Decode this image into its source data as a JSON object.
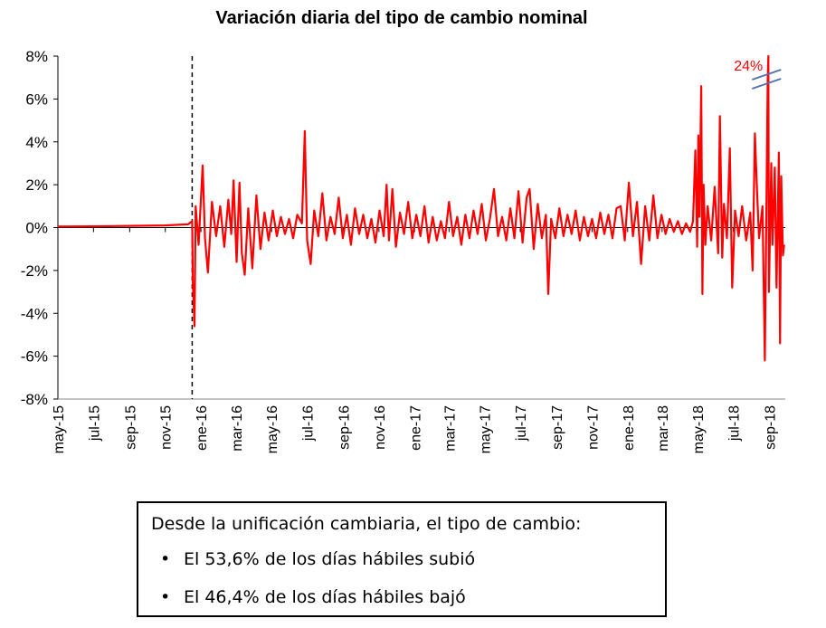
{
  "chart_data": {
    "type": "line",
    "title": "Variación diaria del tipo de cambio nominal",
    "xlabel": "",
    "ylabel": "",
    "ylim": [
      -8,
      8
    ],
    "yticks": [
      "8%",
      "6%",
      "4%",
      "2%",
      "0%",
      "-2%",
      "-4%",
      "-6%",
      "-8%"
    ],
    "xticks": [
      "may-15",
      "jul-15",
      "sep-15",
      "nov-15",
      "ene-16",
      "mar-16",
      "may-16",
      "jul-16",
      "sep-16",
      "nov-16",
      "ene-17",
      "mar-17",
      "may-17",
      "jul-17",
      "sep-17",
      "nov-17",
      "ene-18",
      "mar-18",
      "may-18",
      "jul-18",
      "sep-18"
    ],
    "grid": false,
    "legend": "none",
    "line_color": "#ff0000",
    "event_marker": {
      "date": "2015-12-17",
      "style": "dashed"
    },
    "break_annotation": {
      "label": "24%",
      "date": "2018-08-30",
      "value": 24
    },
    "series": [
      {
        "values": [
          {
            "x": "2015-05-01",
            "y": 0.05
          },
          {
            "x": "2015-07-01",
            "y": 0.06
          },
          {
            "x": "2015-09-01",
            "y": 0.08
          },
          {
            "x": "2015-11-01",
            "y": 0.1
          },
          {
            "x": "2015-12-10",
            "y": 0.15
          },
          {
            "x": "2015-12-17",
            "y": 0.3
          },
          {
            "x": "2015-12-18",
            "y": -2.5
          },
          {
            "x": "2015-12-21",
            "y": -4.6
          },
          {
            "x": "2015-12-23",
            "y": 1.0
          },
          {
            "x": "2015-12-28",
            "y": -0.8
          },
          {
            "x": "2016-01-04",
            "y": 2.9
          },
          {
            "x": "2016-01-08",
            "y": -0.5
          },
          {
            "x": "2016-01-13",
            "y": -2.1
          },
          {
            "x": "2016-01-20",
            "y": 1.2
          },
          {
            "x": "2016-01-27",
            "y": -0.4
          },
          {
            "x": "2016-02-03",
            "y": 1.0
          },
          {
            "x": "2016-02-10",
            "y": -0.9
          },
          {
            "x": "2016-02-17",
            "y": 1.3
          },
          {
            "x": "2016-02-22",
            "y": -0.3
          },
          {
            "x": "2016-02-26",
            "y": 2.2
          },
          {
            "x": "2016-03-02",
            "y": -1.6
          },
          {
            "x": "2016-03-07",
            "y": 2.1
          },
          {
            "x": "2016-03-11",
            "y": -1.2
          },
          {
            "x": "2016-03-16",
            "y": -2.2
          },
          {
            "x": "2016-03-22",
            "y": 0.9
          },
          {
            "x": "2016-03-29",
            "y": -1.9
          },
          {
            "x": "2016-04-05",
            "y": 1.5
          },
          {
            "x": "2016-04-12",
            "y": -1.0
          },
          {
            "x": "2016-04-19",
            "y": 0.7
          },
          {
            "x": "2016-04-26",
            "y": -0.6
          },
          {
            "x": "2016-05-03",
            "y": 0.8
          },
          {
            "x": "2016-05-10",
            "y": -0.4
          },
          {
            "x": "2016-05-17",
            "y": 0.5
          },
          {
            "x": "2016-05-24",
            "y": -0.3
          },
          {
            "x": "2016-05-31",
            "y": 0.4
          },
          {
            "x": "2016-06-07",
            "y": -0.5
          },
          {
            "x": "2016-06-14",
            "y": 0.6
          },
          {
            "x": "2016-06-22",
            "y": 0.2
          },
          {
            "x": "2016-06-27",
            "y": 4.5
          },
          {
            "x": "2016-07-01",
            "y": -0.6
          },
          {
            "x": "2016-07-07",
            "y": -1.7
          },
          {
            "x": "2016-07-13",
            "y": 0.8
          },
          {
            "x": "2016-07-20",
            "y": -0.4
          },
          {
            "x": "2016-07-27",
            "y": 1.6
          },
          {
            "x": "2016-08-03",
            "y": -0.6
          },
          {
            "x": "2016-08-10",
            "y": 0.5
          },
          {
            "x": "2016-08-17",
            "y": -0.3
          },
          {
            "x": "2016-08-24",
            "y": 1.4
          },
          {
            "x": "2016-08-31",
            "y": -0.5
          },
          {
            "x": "2016-09-07",
            "y": 0.6
          },
          {
            "x": "2016-09-14",
            "y": -0.8
          },
          {
            "x": "2016-09-21",
            "y": 0.9
          },
          {
            "x": "2016-09-28",
            "y": -0.3
          },
          {
            "x": "2016-10-05",
            "y": 0.6
          },
          {
            "x": "2016-10-12",
            "y": -0.5
          },
          {
            "x": "2016-10-19",
            "y": 0.4
          },
          {
            "x": "2016-10-26",
            "y": -0.7
          },
          {
            "x": "2016-11-02",
            "y": 0.8
          },
          {
            "x": "2016-11-09",
            "y": -0.4
          },
          {
            "x": "2016-11-14",
            "y": 2.0
          },
          {
            "x": "2016-11-18",
            "y": -0.6
          },
          {
            "x": "2016-11-24",
            "y": 1.8
          },
          {
            "x": "2016-11-30",
            "y": -0.9
          },
          {
            "x": "2016-12-07",
            "y": 0.7
          },
          {
            "x": "2016-12-14",
            "y": -0.3
          },
          {
            "x": "2016-12-21",
            "y": 1.2
          },
          {
            "x": "2016-12-28",
            "y": -0.5
          },
          {
            "x": "2017-01-04",
            "y": 0.6
          },
          {
            "x": "2017-01-11",
            "y": -0.4
          },
          {
            "x": "2017-01-18",
            "y": 1.0
          },
          {
            "x": "2017-01-25",
            "y": -0.7
          },
          {
            "x": "2017-02-01",
            "y": 0.5
          },
          {
            "x": "2017-02-08",
            "y": -0.6
          },
          {
            "x": "2017-02-15",
            "y": 0.3
          },
          {
            "x": "2017-02-22",
            "y": -0.5
          },
          {
            "x": "2017-03-01",
            "y": 1.2
          },
          {
            "x": "2017-03-08",
            "y": -0.4
          },
          {
            "x": "2017-03-15",
            "y": 0.5
          },
          {
            "x": "2017-03-22",
            "y": -0.8
          },
          {
            "x": "2017-03-29",
            "y": 0.6
          },
          {
            "x": "2017-04-05",
            "y": -0.5
          },
          {
            "x": "2017-04-12",
            "y": 0.8
          },
          {
            "x": "2017-04-19",
            "y": -0.3
          },
          {
            "x": "2017-04-26",
            "y": 1.1
          },
          {
            "x": "2017-05-03",
            "y": -0.6
          },
          {
            "x": "2017-05-10",
            "y": 0.4
          },
          {
            "x": "2017-05-17",
            "y": 1.8
          },
          {
            "x": "2017-05-24",
            "y": -0.4
          },
          {
            "x": "2017-05-31",
            "y": 0.5
          },
          {
            "x": "2017-06-07",
            "y": -0.6
          },
          {
            "x": "2017-06-14",
            "y": 0.9
          },
          {
            "x": "2017-06-21",
            "y": -0.5
          },
          {
            "x": "2017-06-28",
            "y": 1.7
          },
          {
            "x": "2017-07-05",
            "y": -0.7
          },
          {
            "x": "2017-07-12",
            "y": 1.4
          },
          {
            "x": "2017-07-17",
            "y": 1.8
          },
          {
            "x": "2017-07-24",
            "y": -1.0
          },
          {
            "x": "2017-07-31",
            "y": 1.1
          },
          {
            "x": "2017-08-07",
            "y": -0.5
          },
          {
            "x": "2017-08-14",
            "y": 0.6
          },
          {
            "x": "2017-08-18",
            "y": -3.1
          },
          {
            "x": "2017-08-23",
            "y": 0.4
          },
          {
            "x": "2017-08-30",
            "y": -0.5
          },
          {
            "x": "2017-09-06",
            "y": 0.9
          },
          {
            "x": "2017-09-13",
            "y": -0.4
          },
          {
            "x": "2017-09-20",
            "y": 0.6
          },
          {
            "x": "2017-09-27",
            "y": -0.3
          },
          {
            "x": "2017-10-04",
            "y": 0.8
          },
          {
            "x": "2017-10-11",
            "y": -0.6
          },
          {
            "x": "2017-10-18",
            "y": 0.5
          },
          {
            "x": "2017-10-25",
            "y": -0.4
          },
          {
            "x": "2017-11-01",
            "y": 0.4
          },
          {
            "x": "2017-11-08",
            "y": -0.5
          },
          {
            "x": "2017-11-15",
            "y": 0.7
          },
          {
            "x": "2017-11-22",
            "y": -0.3
          },
          {
            "x": "2017-11-29",
            "y": 0.6
          },
          {
            "x": "2017-12-06",
            "y": -0.5
          },
          {
            "x": "2017-12-13",
            "y": 0.9
          },
          {
            "x": "2017-12-20",
            "y": 1.0
          },
          {
            "x": "2017-12-27",
            "y": -0.6
          },
          {
            "x": "2018-01-03",
            "y": 2.1
          },
          {
            "x": "2018-01-10",
            "y": -0.4
          },
          {
            "x": "2018-01-17",
            "y": 1.2
          },
          {
            "x": "2018-01-24",
            "y": -1.7
          },
          {
            "x": "2018-01-31",
            "y": 1.0
          },
          {
            "x": "2018-02-07",
            "y": -0.6
          },
          {
            "x": "2018-02-14",
            "y": 1.5
          },
          {
            "x": "2018-02-21",
            "y": -0.5
          },
          {
            "x": "2018-02-28",
            "y": 0.6
          },
          {
            "x": "2018-03-07",
            "y": -0.3
          },
          {
            "x": "2018-03-14",
            "y": 0.4
          },
          {
            "x": "2018-03-21",
            "y": -0.2
          },
          {
            "x": "2018-03-28",
            "y": 0.3
          },
          {
            "x": "2018-04-04",
            "y": -0.3
          },
          {
            "x": "2018-04-11",
            "y": 0.2
          },
          {
            "x": "2018-04-18",
            "y": -0.2
          },
          {
            "x": "2018-04-23",
            "y": 0.3
          },
          {
            "x": "2018-04-27",
            "y": 3.6
          },
          {
            "x": "2018-04-30",
            "y": -0.9
          },
          {
            "x": "2018-05-02",
            "y": 4.3
          },
          {
            "x": "2018-05-04",
            "y": 0.5
          },
          {
            "x": "2018-05-07",
            "y": 6.6
          },
          {
            "x": "2018-05-09",
            "y": -3.1
          },
          {
            "x": "2018-05-11",
            "y": 2.0
          },
          {
            "x": "2018-05-14",
            "y": -0.8
          },
          {
            "x": "2018-05-18",
            "y": 1.0
          },
          {
            "x": "2018-05-24",
            "y": -0.6
          },
          {
            "x": "2018-05-30",
            "y": 1.9
          },
          {
            "x": "2018-06-05",
            "y": -1.2
          },
          {
            "x": "2018-06-08",
            "y": 5.2
          },
          {
            "x": "2018-06-12",
            "y": -1.4
          },
          {
            "x": "2018-06-15",
            "y": 1.1
          },
          {
            "x": "2018-06-20",
            "y": -0.5
          },
          {
            "x": "2018-06-25",
            "y": 3.7
          },
          {
            "x": "2018-06-29",
            "y": -2.8
          },
          {
            "x": "2018-07-04",
            "y": 0.8
          },
          {
            "x": "2018-07-10",
            "y": -0.4
          },
          {
            "x": "2018-07-16",
            "y": 1.0
          },
          {
            "x": "2018-07-23",
            "y": -0.6
          },
          {
            "x": "2018-07-30",
            "y": 0.7
          },
          {
            "x": "2018-08-03",
            "y": -2.0
          },
          {
            "x": "2018-08-07",
            "y": 4.4
          },
          {
            "x": "2018-08-10",
            "y": 2.1
          },
          {
            "x": "2018-08-14",
            "y": -0.5
          },
          {
            "x": "2018-08-20",
            "y": 1.0
          },
          {
            "x": "2018-08-24",
            "y": -6.2
          },
          {
            "x": "2018-08-29",
            "y": 7.0
          },
          {
            "x": "2018-08-30",
            "y": 24
          },
          {
            "x": "2018-08-31",
            "y": -3.0
          },
          {
            "x": "2018-09-04",
            "y": 3.0
          },
          {
            "x": "2018-09-06",
            "y": -0.8
          },
          {
            "x": "2018-09-10",
            "y": 2.8
          },
          {
            "x": "2018-09-13",
            "y": -2.8
          },
          {
            "x": "2018-09-17",
            "y": 3.5
          },
          {
            "x": "2018-09-19",
            "y": -5.4
          },
          {
            "x": "2018-09-21",
            "y": 2.4
          },
          {
            "x": "2018-09-24",
            "y": -1.3
          },
          {
            "x": "2018-09-26",
            "y": -0.8
          }
        ]
      }
    ]
  },
  "note": {
    "title": "Desde la unificación cambiaria, el tipo de cambio:",
    "items": [
      {
        "bullet": "•",
        "text": "El 53,6% de los días hábiles subió"
      },
      {
        "bullet": "•",
        "text": "El 46,4% de los días hábiles bajó"
      }
    ]
  }
}
